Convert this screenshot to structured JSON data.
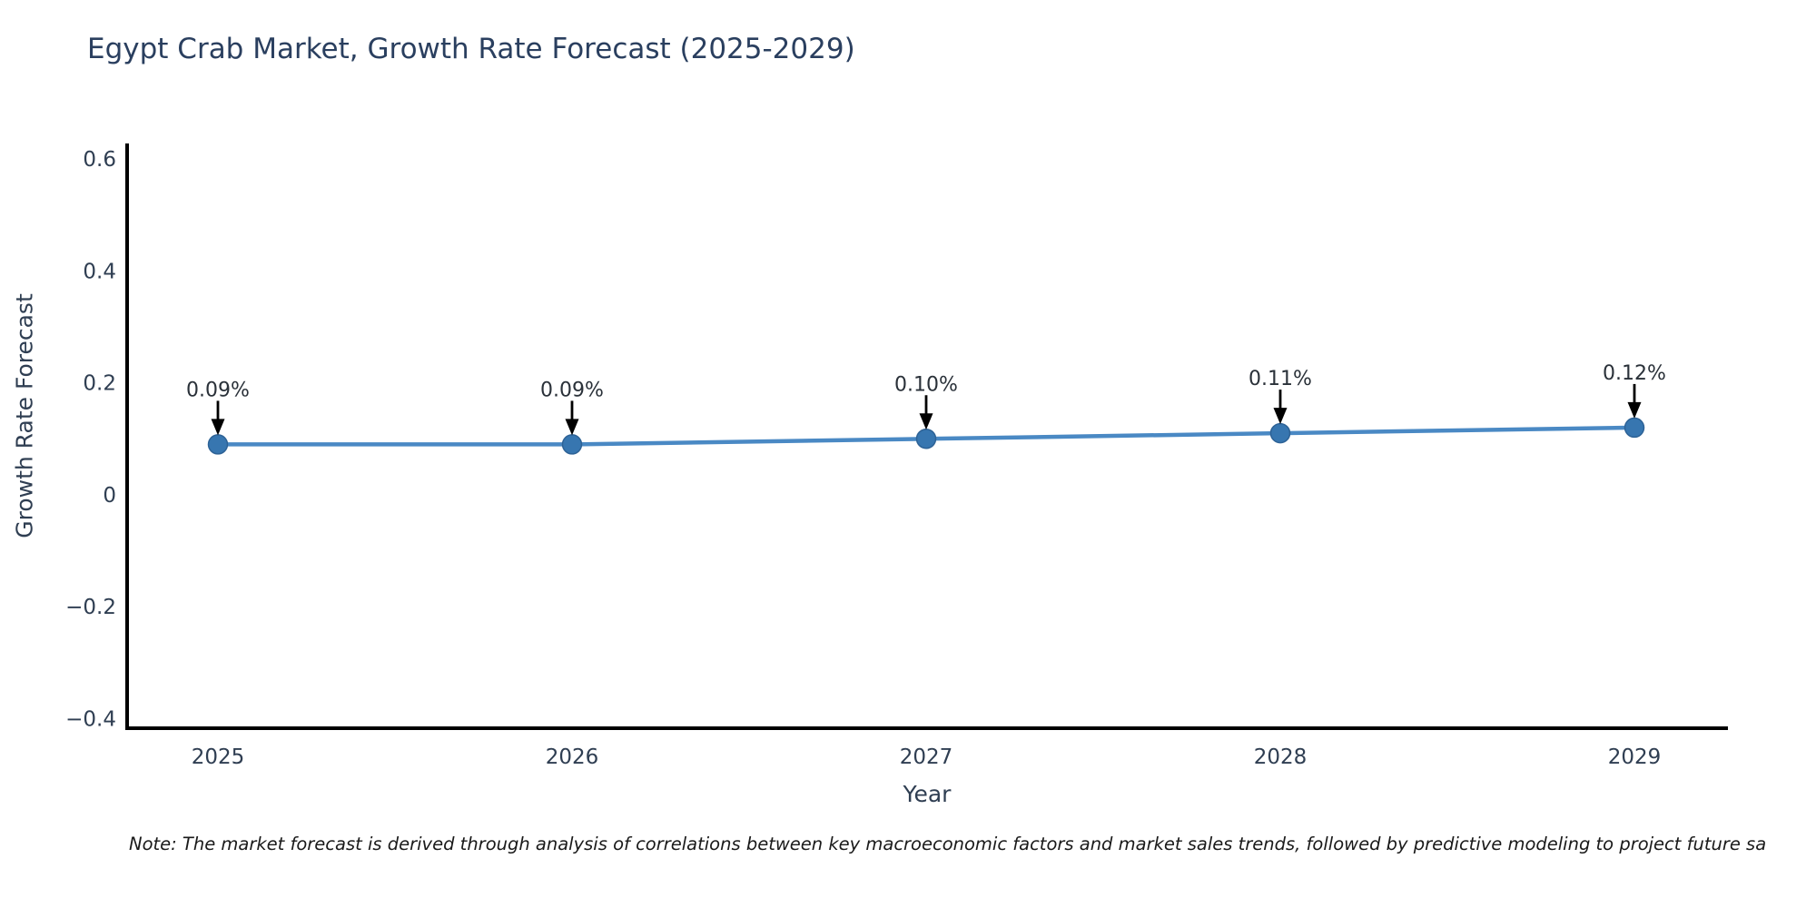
{
  "note": "Note: The market forecast is derived through analysis of correlations between key macroeconomic factors and market sales trends, followed by predictive modeling to project future sa",
  "chart_data": {
    "type": "line",
    "title": "Egypt Crab Market, Growth Rate Forecast (2025-2029)",
    "xlabel": "Year",
    "ylabel": "Growth Rate Forecast",
    "x": [
      2025,
      2026,
      2027,
      2028,
      2029
    ],
    "values": [
      0.09,
      0.09,
      0.1,
      0.11,
      0.12
    ],
    "point_labels": [
      "0.09%",
      "0.09%",
      "0.10%",
      "0.11%",
      "0.12%"
    ],
    "xticks": [
      "2025",
      "2026",
      "2027",
      "2028",
      "2029"
    ],
    "yticks": [
      {
        "label": "0.6",
        "v": 0.6
      },
      {
        "label": "0.4",
        "v": 0.4
      },
      {
        "label": "0.2",
        "v": 0.2
      },
      {
        "label": "0",
        "v": 0
      },
      {
        "label": "−0.2",
        "v": -0.2
      },
      {
        "label": "−0.4",
        "v": -0.4
      }
    ],
    "ylim": [
      -0.42,
      0.63
    ],
    "grid": false,
    "legend": "none",
    "colors": {
      "line": "#4a89c4",
      "marker": "#3776b0",
      "marker_edge": "#2d6296",
      "axis": "#000000",
      "tick_text": "#2f3e52",
      "annotation_text": "#2a3139",
      "arrow": "#000000",
      "title_text": "#2a3f5f"
    }
  }
}
